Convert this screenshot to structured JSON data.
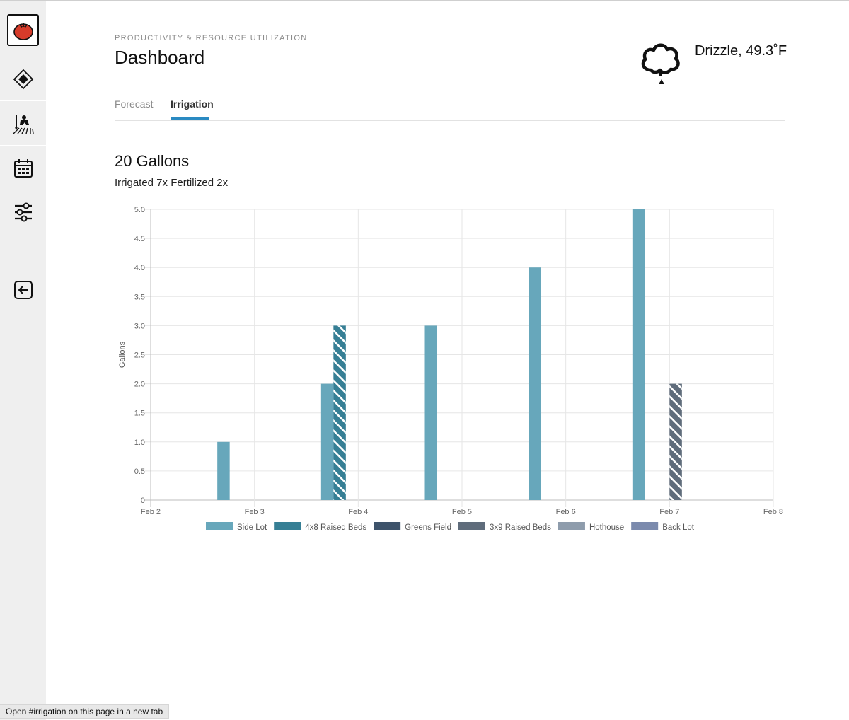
{
  "sidebar": {
    "items": [
      {
        "name": "tomato-logo-icon"
      },
      {
        "name": "diamond-nav-icon"
      },
      {
        "name": "gardener-icon"
      },
      {
        "name": "calendar-icon"
      },
      {
        "name": "sliders-icon"
      },
      {
        "name": "logout-icon"
      }
    ]
  },
  "header": {
    "subtitle": "PRODUCTIVITY & RESOURCE UTILIZATION",
    "title": "Dashboard"
  },
  "weather": {
    "icon": "drizzle-cloud-icon",
    "text": "Drizzle, 49.3˚F"
  },
  "tabs": [
    {
      "label": "Forecast",
      "active": false
    },
    {
      "label": "Irrigation",
      "active": true
    }
  ],
  "summary": {
    "total": "20 Gallons",
    "detail": "Irrigated 7x Fertilized 2x"
  },
  "chart_data": {
    "type": "bar",
    "ylabel": "Gallons",
    "ylim": [
      0,
      5
    ],
    "yticks": [
      "0",
      "0.5",
      "1.0",
      "1.5",
      "2.0",
      "2.5",
      "3.0",
      "3.5",
      "4.0",
      "4.5",
      "5.0"
    ],
    "x_ticks": [
      "Feb 2",
      "Feb 3",
      "Feb 4",
      "Feb 5",
      "Feb 6",
      "Feb 7",
      "Feb 8"
    ],
    "grid": true,
    "legend_position": "bottom",
    "series": [
      {
        "name": "Side Lot",
        "color": "#67a7bb",
        "hatched": false,
        "values": [
          null,
          1,
          2,
          3,
          4,
          5,
          null
        ]
      },
      {
        "name": "4x8 Raised Beds",
        "color": "#367f95",
        "hatched": true,
        "values": [
          null,
          null,
          3,
          null,
          null,
          null,
          null
        ]
      },
      {
        "name": "Greens Field",
        "color": "#3e536b",
        "hatched": false,
        "values": [
          null,
          null,
          null,
          null,
          null,
          null,
          null
        ]
      },
      {
        "name": "3x9 Raised Beds",
        "color": "#5f6c7b",
        "hatched": true,
        "values": [
          null,
          null,
          null,
          null,
          null,
          2,
          null
        ]
      },
      {
        "name": "Hothouse",
        "color": "#8e9cac",
        "hatched": false,
        "values": [
          null,
          null,
          null,
          null,
          null,
          null,
          null
        ]
      },
      {
        "name": "Back Lot",
        "color": "#7b8aad",
        "hatched": false,
        "values": [
          null,
          null,
          null,
          null,
          null,
          null,
          null
        ]
      }
    ]
  },
  "status_bar": {
    "text": "Open #irrigation on this page in a new tab"
  }
}
